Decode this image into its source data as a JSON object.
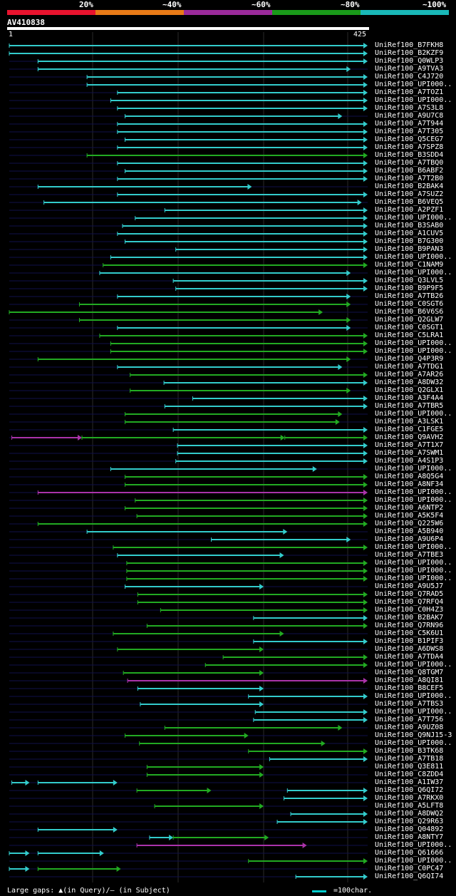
{
  "legend": {
    "colors": [
      "#e8132e",
      "#e87a17",
      "#9a2a9a",
      "#1a9a1a",
      "#1ab8b8"
    ],
    "labels": [
      "20%",
      "~40%",
      "~60%",
      "~80%",
      "~100%"
    ]
  },
  "query": {
    "id": "AV410838",
    "start": "1",
    "end": "425",
    "length": 425
  },
  "footer": {
    "gaps_text": "Large gaps: ▲(in Query)/– (in Subject)",
    "scale_text": "=100char."
  },
  "hits": [
    {
      "label": "UniRef100_B7FKH8",
      "segs": [
        [
          1,
          425,
          "c"
        ]
      ]
    },
    {
      "label": "UniRef100_B2KZF9",
      "segs": [
        [
          1,
          425,
          "c"
        ]
      ]
    },
    {
      "label": "UniRef100_Q0WLP3",
      "segs": [
        [
          35,
          425,
          "c"
        ]
      ]
    },
    {
      "label": "UniRef100_A9TVA3",
      "segs": [
        [
          35,
          405,
          "c"
        ]
      ]
    },
    {
      "label": "UniRef100_C4J720",
      "segs": [
        [
          93,
          425,
          "c"
        ]
      ]
    },
    {
      "label": "UniRef100_UPI000..",
      "segs": [
        [
          93,
          425,
          "c"
        ]
      ]
    },
    {
      "label": "UniRef100_A7TOZ1",
      "segs": [
        [
          129,
          425,
          "c"
        ]
      ]
    },
    {
      "label": "UniRef100_UPI000..",
      "segs": [
        [
          121,
          425,
          "c"
        ]
      ]
    },
    {
      "label": "UniRef100_A7S3L8",
      "segs": [
        [
          129,
          425,
          "c"
        ]
      ]
    },
    {
      "label": "UniRef100_A9U7C8",
      "segs": [
        [
          138,
          395,
          "c"
        ]
      ]
    },
    {
      "label": "UniRef100_A7T944",
      "segs": [
        [
          129,
          425,
          "c"
        ]
      ]
    },
    {
      "label": "UniRef100_A7T305",
      "segs": [
        [
          129,
          425,
          "c"
        ]
      ]
    },
    {
      "label": "UniRef100_Q5CEG7",
      "segs": [
        [
          138,
          425,
          "c"
        ]
      ]
    },
    {
      "label": "UniRef100_A7SPZ8",
      "segs": [
        [
          129,
          425,
          "c"
        ]
      ]
    },
    {
      "label": "UniRef100_B3SDD4",
      "segs": [
        [
          93,
          425,
          "g"
        ]
      ]
    },
    {
      "label": "UniRef100_A7TBQ0",
      "segs": [
        [
          129,
          425,
          "c"
        ]
      ]
    },
    {
      "label": "UniRef100_B6ABF2",
      "segs": [
        [
          138,
          425,
          "c"
        ]
      ]
    },
    {
      "label": "UniRef100_A7T2B0",
      "segs": [
        [
          129,
          425,
          "c"
        ]
      ]
    },
    {
      "label": "UniRef100_B2BAK4",
      "segs": [
        [
          35,
          288,
          "c"
        ]
      ]
    },
    {
      "label": "UniRef100_A7SUZ2",
      "segs": [
        [
          129,
          425,
          "c"
        ]
      ]
    },
    {
      "label": "UniRef100_B6VEQ5",
      "segs": [
        [
          42,
          418,
          "c"
        ]
      ]
    },
    {
      "label": "UniRef100_A2PZF1",
      "segs": [
        [
          185,
          425,
          "c"
        ]
      ]
    },
    {
      "label": "UniRef100_UPI000..",
      "segs": [
        [
          150,
          425,
          "c"
        ]
      ]
    },
    {
      "label": "UniRef100_B3SAB0",
      "segs": [
        [
          135,
          425,
          "c"
        ]
      ]
    },
    {
      "label": "UniRef100_A1CUV5",
      "segs": [
        [
          129,
          425,
          "c"
        ]
      ]
    },
    {
      "label": "UniRef100_B7G300",
      "segs": [
        [
          138,
          425,
          "c"
        ]
      ]
    },
    {
      "label": "UniRef100_B9PAN3",
      "segs": [
        [
          198,
          425,
          "c"
        ]
      ]
    },
    {
      "label": "UniRef100_UPI000..",
      "segs": [
        [
          121,
          425,
          "c"
        ]
      ]
    },
    {
      "label": "UniRef100_C1NAM9",
      "segs": [
        [
          112,
          425,
          "g"
        ]
      ]
    },
    {
      "label": "UniRef100_UPI000..",
      "segs": [
        [
          108,
          405,
          "c"
        ]
      ]
    },
    {
      "label": "UniRef100_Q3LVL5",
      "segs": [
        [
          195,
          425,
          "c"
        ]
      ]
    },
    {
      "label": "UniRef100_B9P9F5",
      "segs": [
        [
          198,
          425,
          "c"
        ]
      ]
    },
    {
      "label": "UniRef100_A7TB26",
      "segs": [
        [
          129,
          405,
          "c"
        ]
      ]
    },
    {
      "label": "UniRef100_C0SGT6",
      "segs": [
        [
          84,
          405,
          "g"
        ]
      ]
    },
    {
      "label": "UniRef100_B6V6S6",
      "segs": [
        [
          1,
          372,
          "g"
        ]
      ]
    },
    {
      "label": "UniRef100_Q2GLW7",
      "segs": [
        [
          84,
          405,
          "g"
        ]
      ]
    },
    {
      "label": "UniRef100_C0SGT1",
      "segs": [
        [
          129,
          405,
          "c"
        ]
      ]
    },
    {
      "label": "UniRef100_C5LRA1",
      "segs": [
        [
          108,
          425,
          "g"
        ]
      ]
    },
    {
      "label": "UniRef100_UPI000..",
      "segs": [
        [
          121,
          425,
          "g"
        ]
      ]
    },
    {
      "label": "UniRef100_UPI000..",
      "segs": [
        [
          121,
          425,
          "g"
        ]
      ]
    },
    {
      "label": "UniRef100_Q4P3R9",
      "segs": [
        [
          35,
          405,
          "g"
        ]
      ]
    },
    {
      "label": "UniRef100_A7TDG1",
      "segs": [
        [
          129,
          395,
          "c"
        ]
      ]
    },
    {
      "label": "UniRef100_A7AR26",
      "segs": [
        [
          144,
          425,
          "g"
        ]
      ]
    },
    {
      "label": "UniRef100_A8DW32",
      "segs": [
        [
          184,
          425,
          "c"
        ]
      ]
    },
    {
      "label": "UniRef100_Q2GLX1",
      "segs": [
        [
          144,
          405,
          "g"
        ]
      ]
    },
    {
      "label": "UniRef100_A3F4A4",
      "segs": [
        [
          218,
          425,
          "c"
        ]
      ]
    },
    {
      "label": "UniRef100_A7TBR5",
      "segs": [
        [
          185,
          425,
          "c"
        ]
      ]
    },
    {
      "label": "UniRef100_UPI000..",
      "segs": [
        [
          138,
          395,
          "g"
        ]
      ]
    },
    {
      "label": "UniRef100_A3LSK1",
      "segs": [
        [
          138,
          392,
          "g"
        ]
      ]
    },
    {
      "label": "UniRef100_C1FGE5",
      "segs": [
        [
          195,
          425,
          "c"
        ]
      ]
    },
    {
      "label": "UniRef100_Q9AVH2",
      "segs": [
        [
          4,
          87,
          "m"
        ],
        [
          87,
          327,
          "g"
        ],
        [
          327,
          425,
          "g"
        ]
      ]
    },
    {
      "label": "UniRef100_A7T1X7",
      "segs": [
        [
          200,
          425,
          "c"
        ]
      ]
    },
    {
      "label": "UniRef100_A7SWM1",
      "segs": [
        [
          200,
          425,
          "c"
        ]
      ]
    },
    {
      "label": "UniRef100_A4S1P3",
      "segs": [
        [
          198,
          425,
          "c"
        ]
      ]
    },
    {
      "label": "UniRef100_UPI000..",
      "segs": [
        [
          121,
          365,
          "c"
        ]
      ]
    },
    {
      "label": "UniRef100_A8Q5G4",
      "segs": [
        [
          138,
          425,
          "g"
        ]
      ]
    },
    {
      "label": "UniRef100_A8NF34",
      "segs": [
        [
          138,
          425,
          "g"
        ]
      ]
    },
    {
      "label": "UniRef100_UPI000..",
      "segs": [
        [
          35,
          425,
          "m"
        ]
      ]
    },
    {
      "label": "UniRef100_UPI000..",
      "segs": [
        [
          150,
          425,
          "g"
        ]
      ]
    },
    {
      "label": "UniRef100_A6NTP2",
      "segs": [
        [
          138,
          425,
          "g"
        ]
      ]
    },
    {
      "label": "UniRef100_A5K5F4",
      "segs": [
        [
          152,
          425,
          "g"
        ]
      ]
    },
    {
      "label": "UniRef100_Q225W6",
      "segs": [
        [
          35,
          425,
          "g"
        ]
      ]
    },
    {
      "label": "UniRef100_A5B940",
      "segs": [
        [
          93,
          330,
          "c"
        ]
      ]
    },
    {
      "label": "UniRef100_A9U6P4",
      "segs": [
        [
          240,
          405,
          "c"
        ]
      ]
    },
    {
      "label": "UniRef100_UPI000..",
      "segs": [
        [
          124,
          425,
          "g"
        ]
      ]
    },
    {
      "label": "UniRef100_A7TBE3",
      "segs": [
        [
          129,
          326,
          "c"
        ]
      ]
    },
    {
      "label": "UniRef100_UPI000..",
      "segs": [
        [
          140,
          425,
          "g"
        ]
      ]
    },
    {
      "label": "UniRef100_UPI000..",
      "segs": [
        [
          140,
          425,
          "g"
        ]
      ]
    },
    {
      "label": "UniRef100_UPI000..",
      "segs": [
        [
          140,
          425,
          "g"
        ]
      ]
    },
    {
      "label": "UniRef100_A9U5J7",
      "segs": [
        [
          138,
          302,
          "c"
        ]
      ]
    },
    {
      "label": "UniRef100_Q7RAD5",
      "segs": [
        [
          153,
          425,
          "g"
        ]
      ]
    },
    {
      "label": "UniRef100_Q7RFQ4",
      "segs": [
        [
          153,
          425,
          "g"
        ]
      ]
    },
    {
      "label": "UniRef100_C0H4Z3",
      "segs": [
        [
          180,
          425,
          "g"
        ]
      ]
    },
    {
      "label": "UniRef100_B2BAK7",
      "segs": [
        [
          290,
          425,
          "c"
        ]
      ]
    },
    {
      "label": "UniRef100_Q7RN96",
      "segs": [
        [
          164,
          425,
          "g"
        ]
      ]
    },
    {
      "label": "UniRef100_C5K6U1",
      "segs": [
        [
          124,
          326,
          "g"
        ]
      ]
    },
    {
      "label": "UniRef100_B1PIF3",
      "segs": [
        [
          290,
          425,
          "c"
        ]
      ]
    },
    {
      "label": "UniRef100_A6DWS8",
      "segs": [
        [
          129,
          302,
          "g"
        ]
      ]
    },
    {
      "label": "UniRef100_A7TDA4",
      "segs": [
        [
          254,
          425,
          "g"
        ]
      ]
    },
    {
      "label": "UniRef100_UPI000..",
      "segs": [
        [
          233,
          425,
          "g"
        ]
      ]
    },
    {
      "label": "UniRef100_Q8TGM7",
      "segs": [
        [
          136,
          302,
          "g"
        ]
      ]
    },
    {
      "label": "UniRef100_A8QI81",
      "segs": [
        [
          141,
          425,
          "m"
        ]
      ]
    },
    {
      "label": "UniRef100_B8CEF5",
      "segs": [
        [
          153,
          302,
          "c"
        ]
      ]
    },
    {
      "label": "UniRef100_UPI000..",
      "segs": [
        [
          284,
          425,
          "c"
        ]
      ]
    },
    {
      "label": "UniRef100_A7TBS3",
      "segs": [
        [
          156,
          302,
          "c"
        ]
      ]
    },
    {
      "label": "UniRef100_UPI000..",
      "segs": [
        [
          292,
          425,
          "c"
        ]
      ]
    },
    {
      "label": "UniRef100_A7T756",
      "segs": [
        [
          290,
          425,
          "c"
        ]
      ]
    },
    {
      "label": "UniRef100_A9UZ08",
      "segs": [
        [
          185,
          395,
          "g"
        ]
      ]
    },
    {
      "label": "UniRef100_Q9NJ15-3",
      "segs": [
        [
          138,
          284,
          "g"
        ]
      ]
    },
    {
      "label": "UniRef100_UPI000..",
      "segs": [
        [
          155,
          375,
          "g"
        ]
      ]
    },
    {
      "label": "UniRef100_B3TK68",
      "segs": [
        [
          284,
          425,
          "g"
        ]
      ]
    },
    {
      "label": "UniRef100_A7TB18",
      "segs": [
        [
          309,
          425,
          "c"
        ]
      ]
    },
    {
      "label": "UniRef100_Q3E811",
      "segs": [
        [
          164,
          302,
          "g"
        ]
      ]
    },
    {
      "label": "UniRef100_C8ZDD4",
      "segs": [
        [
          164,
          302,
          "g"
        ]
      ]
    },
    {
      "label": "UniRef100_A1IW37",
      "segs": [
        [
          4,
          25,
          "c"
        ],
        [
          35,
          129,
          "c"
        ]
      ]
    },
    {
      "label": "UniRef100_Q6QI72",
      "segs": [
        [
          152,
          240,
          "g"
        ],
        [
          330,
          425,
          "c"
        ]
      ]
    },
    {
      "label": "UniRef100_A7RKX0",
      "segs": [
        [
          326,
          425,
          "c"
        ]
      ]
    },
    {
      "label": "UniRef100_A5LFT8",
      "segs": [
        [
          173,
          302,
          "g"
        ]
      ]
    },
    {
      "label": "UniRef100_A8DWQ2",
      "segs": [
        [
          334,
          425,
          "c"
        ]
      ]
    },
    {
      "label": "UniRef100_Q29R63",
      "segs": [
        [
          318,
          425,
          "c"
        ]
      ]
    },
    {
      "label": "UniRef100_Q04892",
      "segs": [
        [
          35,
          129,
          "c"
        ]
      ]
    },
    {
      "label": "UniRef100_A8NTY7",
      "segs": [
        [
          167,
          195,
          "c"
        ],
        [
          195,
          308,
          "g"
        ]
      ]
    },
    {
      "label": "UniRef100_UPI000..",
      "segs": [
        [
          152,
          353,
          "m"
        ]
      ]
    },
    {
      "label": "UniRef100_Q61666",
      "segs": [
        [
          1,
          25,
          "c"
        ],
        [
          35,
          113,
          "c"
        ]
      ]
    },
    {
      "label": "UniRef100_UPI000..",
      "segs": [
        [
          284,
          425,
          "g"
        ]
      ]
    },
    {
      "label": "UniRef100_C0PC47",
      "segs": [
        [
          1,
          25,
          "c"
        ],
        [
          35,
          133,
          "g"
        ]
      ]
    },
    {
      "label": "UniRef100_Q6QI74",
      "segs": [
        [
          340,
          425,
          "c"
        ]
      ]
    }
  ]
}
